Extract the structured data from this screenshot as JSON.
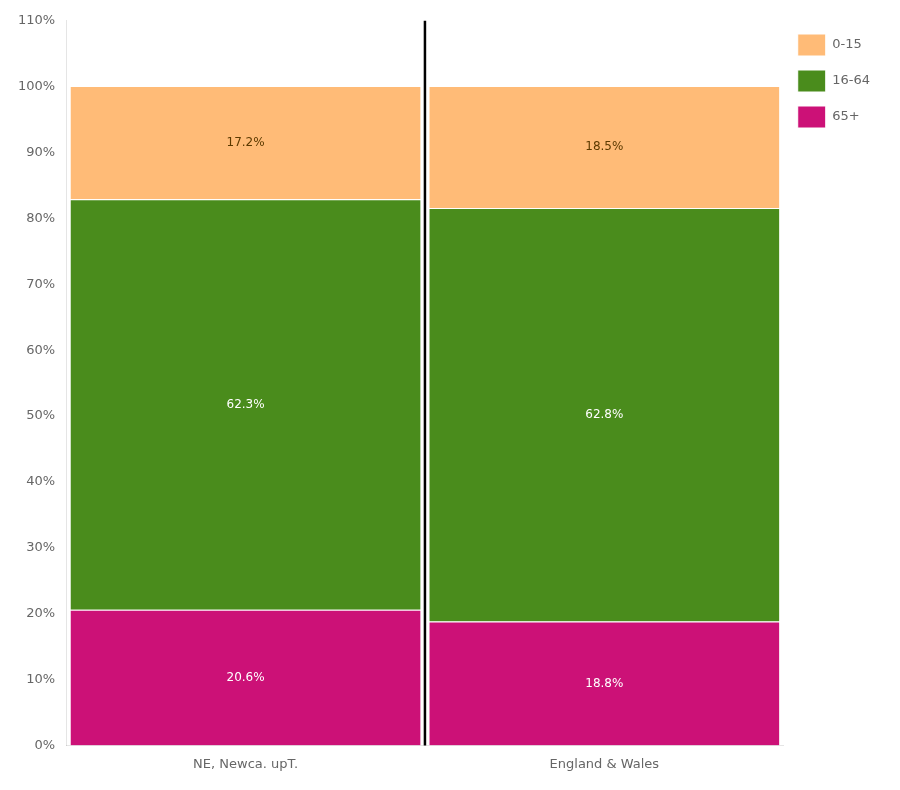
{
  "chart_data": {
    "type": "bar",
    "stacked": true,
    "categories": [
      "NE, Newca. upT.",
      "England & Wales"
    ],
    "series": [
      {
        "name": "65+",
        "color": "#CC1177",
        "values": [
          20.6,
          18.8
        ],
        "value_labels": [
          "20.6%",
          "18.8%"
        ]
      },
      {
        "name": "16-64",
        "color": "#4A8C1C",
        "values": [
          62.3,
          62.8
        ],
        "value_labels": [
          "62.3%",
          "62.8%"
        ]
      },
      {
        "name": "0-15",
        "color": "#FFBB77",
        "values": [
          17.2,
          18.5
        ],
        "value_labels": [
          "17.2%",
          "18.5%"
        ]
      }
    ],
    "ylim": [
      0,
      110
    ],
    "yticks": [
      {
        "value": 0,
        "label": "0%"
      },
      {
        "value": 10,
        "label": "10%"
      },
      {
        "value": 20,
        "label": "20%"
      },
      {
        "value": 30,
        "label": "30%"
      },
      {
        "value": 40,
        "label": "40%"
      },
      {
        "value": 50,
        "label": "50%"
      },
      {
        "value": 60,
        "label": "60%"
      },
      {
        "value": 70,
        "label": "70%"
      },
      {
        "value": 80,
        "label": "80%"
      },
      {
        "value": 90,
        "label": "90%"
      },
      {
        "value": 100,
        "label": "100%"
      },
      {
        "value": 110,
        "label": "110%"
      }
    ],
    "data_labels": true,
    "grid": false,
    "legend": "right"
  }
}
